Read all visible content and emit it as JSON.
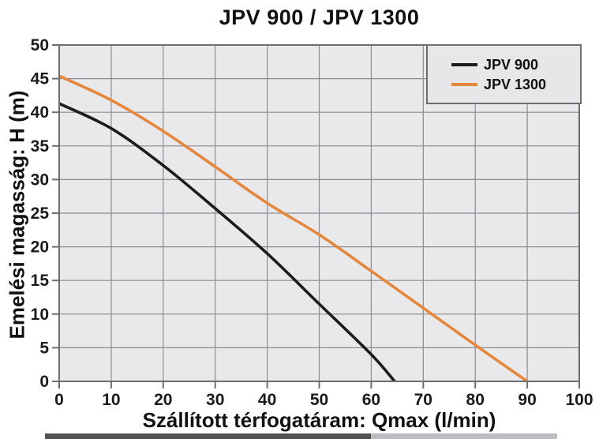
{
  "chart_data": {
    "type": "line",
    "title": "JPV 900 / JPV 1300",
    "xlabel": "Szállított térfogatáram: Qmax (l/min)",
    "ylabel": "Emelési magasság: H (m)",
    "xlim": [
      0,
      100
    ],
    "ylim": [
      0,
      50
    ],
    "xticks": [
      0,
      10,
      20,
      30,
      40,
      50,
      60,
      70,
      80,
      90,
      100
    ],
    "yticks": [
      0,
      5,
      10,
      15,
      20,
      25,
      30,
      35,
      40,
      45,
      50
    ],
    "grid": true,
    "legend_position": "top-right",
    "colors": {
      "plot_bg": "#e9e9eb",
      "grid": "#8c8c90",
      "frame": "#6e6e72",
      "text": "#1a1a1a"
    },
    "series": [
      {
        "name": "JPV 900",
        "color": "#1c1c1c",
        "points": [
          [
            0,
            41.3
          ],
          [
            10,
            37.6
          ],
          [
            20,
            32.1
          ],
          [
            30,
            25.7
          ],
          [
            40,
            19.0
          ],
          [
            50,
            11.5
          ],
          [
            60,
            4.0
          ],
          [
            64.5,
            0
          ]
        ]
      },
      {
        "name": "JPV 1300",
        "color": "#e5873c",
        "points": [
          [
            0,
            45.4
          ],
          [
            10,
            41.8
          ],
          [
            20,
            37.2
          ],
          [
            30,
            31.9
          ],
          [
            40,
            26.5
          ],
          [
            50,
            21.8
          ],
          [
            60,
            16.4
          ],
          [
            70,
            10.9
          ],
          [
            80,
            5.4
          ],
          [
            90,
            0
          ]
        ]
      }
    ]
  }
}
